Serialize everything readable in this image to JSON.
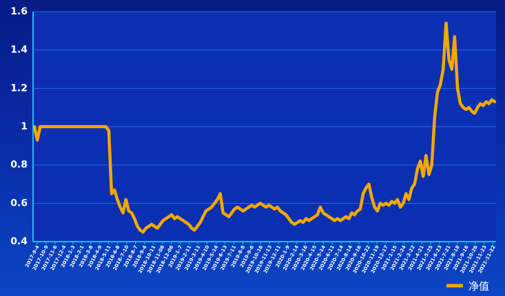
{
  "colors": {
    "background_top": "#061c86",
    "background_bottom": "#0b46c4",
    "plot_area": "#0a2fb0",
    "gridline": "#2d6df0",
    "axis": "#00c8ff",
    "line": "#f5a800",
    "text": "#ffffff"
  },
  "chart_data": {
    "type": "line",
    "title": "",
    "xlabel": "",
    "ylabel": "",
    "ylim": [
      0.4,
      1.6
    ],
    "y_ticks": [
      "0.4",
      "0.6",
      "0.8",
      "1",
      "1.2",
      "1.4",
      "1.6"
    ],
    "grid": true,
    "legend_position": "bottom-right",
    "x_tick_labels": [
      "2017-9-4",
      "2017-10-9",
      "2017-11-6",
      "2017-12-4",
      "2018-1-3",
      "2018-2-1",
      "2018-3-8",
      "2018-4-9",
      "2018-5-11",
      "2018-6-8",
      "2018-7-10",
      "2018-8-7",
      "2018-9-4",
      "2018-10-11",
      "2018-11-08",
      "2018-12-06",
      "2019-1-7",
      "2019-2-11",
      "2019-3-11",
      "2019-4-10",
      "2019-5-14",
      "2019-6-13",
      "2019-7-11",
      "2019-8-8",
      "2019-9-6",
      "2019-10-16",
      "2019-11-13",
      "2019-12-11",
      "2020-1-9",
      "2020-2-14",
      "2020-3-16",
      "2020-4-15",
      "2020-5-14",
      "2020-6-11",
      "2020-7-14",
      "2020-8-14",
      "2020-9-16",
      "2020-10-22",
      "2020-11-19",
      "2020-12-17",
      "2021-1-15",
      "2021-2-24",
      "2021-3-22",
      "2021-4-21",
      "2021-5-25",
      "2021-6-23",
      "2021-7-21",
      "2021-8-18",
      "2021-9-16",
      "2021-10-26",
      "2021-11-23",
      "2021-11-22"
    ],
    "series": [
      {
        "name": "净值",
        "values": [
          1.0,
          0.93,
          1.0,
          1.0,
          1.0,
          1.0,
          1.0,
          1.0,
          1.0,
          1.0,
          1.0,
          1.0,
          1.0,
          1.0,
          1.0,
          1.0,
          1.0,
          1.0,
          1.0,
          1.0,
          1.0,
          1.0,
          1.0,
          1.0,
          1.0,
          1.0,
          0.98,
          0.65,
          0.67,
          0.62,
          0.58,
          0.55,
          0.62,
          0.56,
          0.55,
          0.52,
          0.48,
          0.46,
          0.45,
          0.47,
          0.48,
          0.49,
          0.48,
          0.47,
          0.49,
          0.51,
          0.52,
          0.53,
          0.54,
          0.52,
          0.53,
          0.52,
          0.51,
          0.5,
          0.49,
          0.47,
          0.46,
          0.48,
          0.5,
          0.53,
          0.56,
          0.57,
          0.58,
          0.6,
          0.62,
          0.65,
          0.55,
          0.54,
          0.53,
          0.55,
          0.57,
          0.58,
          0.57,
          0.56,
          0.57,
          0.58,
          0.59,
          0.58,
          0.59,
          0.6,
          0.59,
          0.58,
          0.59,
          0.58,
          0.57,
          0.58,
          0.56,
          0.55,
          0.54,
          0.52,
          0.5,
          0.49,
          0.5,
          0.51,
          0.5,
          0.52,
          0.51,
          0.52,
          0.53,
          0.54,
          0.58,
          0.55,
          0.54,
          0.53,
          0.52,
          0.51,
          0.52,
          0.51,
          0.52,
          0.53,
          0.52,
          0.55,
          0.54,
          0.56,
          0.57,
          0.65,
          0.68,
          0.7,
          0.63,
          0.58,
          0.56,
          0.6,
          0.59,
          0.6,
          0.59,
          0.61,
          0.6,
          0.62,
          0.58,
          0.6,
          0.65,
          0.62,
          0.68,
          0.7,
          0.78,
          0.82,
          0.74,
          0.85,
          0.75,
          0.8,
          1.05,
          1.18,
          1.22,
          1.3,
          1.54,
          1.35,
          1.3,
          1.47,
          1.2,
          1.12,
          1.1,
          1.09,
          1.1,
          1.08,
          1.07,
          1.1,
          1.12,
          1.11,
          1.13,
          1.12,
          1.14,
          1.13
        ]
      }
    ]
  }
}
